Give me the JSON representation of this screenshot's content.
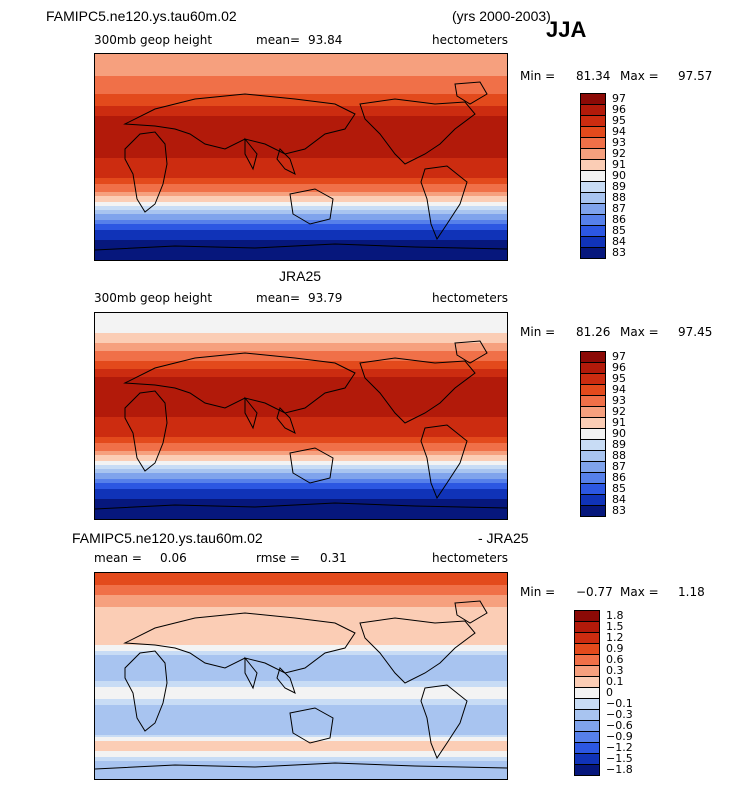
{
  "header": {
    "case_name": "FAMIPC5.ne120.ys.tau60m.02",
    "years": "(yrs 2000-2003)",
    "season": "JJA"
  },
  "panels": [
    {
      "title": "",
      "field_label": "300mb geop height",
      "mean_label": "mean=",
      "mean_value": "93.84",
      "units": "hectometers",
      "min_label": "Min =",
      "min_value": "81.34",
      "max_label": "Max =",
      "max_value": "97.57"
    },
    {
      "title": "JRA25",
      "field_label": "300mb geop height",
      "mean_label": "mean=",
      "mean_value": "93.79",
      "units": "hectometers",
      "min_label": "Min =",
      "min_value": "81.26",
      "max_label": "Max =",
      "max_value": "97.45"
    },
    {
      "title_left": "FAMIPC5.ne120.ys.tau60m.02",
      "title_right": "- JRA25",
      "mean_label": "mean =",
      "mean_value": "0.06",
      "rmse_label": "rmse =",
      "rmse_value": "0.31",
      "units": "hectometers",
      "min_label": "Min =",
      "min_value": "−0.77",
      "max_label": "Max =",
      "max_value": "1.18"
    }
  ],
  "chart_data": [
    {
      "type": "heatmap",
      "title": "300mb geop height",
      "units": "hectometers",
      "colorbar_levels": [
        "97",
        "96",
        "95",
        "94",
        "93",
        "92",
        "91",
        "90",
        "89",
        "88",
        "87",
        "86",
        "85",
        "84",
        "83"
      ],
      "colorbar_colors": [
        "#8b0a06",
        "#b21a0a",
        "#cc2c10",
        "#e34a1c",
        "#f07048",
        "#f6a07e",
        "#fbcdb5",
        "#f3f3f3",
        "#c8dcf5",
        "#a8c4f0",
        "#7fa3ec",
        "#5680ea",
        "#2c57e2",
        "#1033b8",
        "#06177c"
      ],
      "zonal_profile": [
        {
          "lat": 80,
          "value": 92.5
        },
        {
          "lat": 60,
          "value": 93.5
        },
        {
          "lat": 45,
          "value": 95.0
        },
        {
          "lat": 30,
          "value": 96.5
        },
        {
          "lat": 15,
          "value": 96.5
        },
        {
          "lat": 0,
          "value": 96.0
        },
        {
          "lat": -15,
          "value": 95.5
        },
        {
          "lat": -30,
          "value": 93.0
        },
        {
          "lat": -45,
          "value": 89.5
        },
        {
          "lat": -60,
          "value": 85.5
        },
        {
          "lat": -80,
          "value": 83.0
        }
      ]
    },
    {
      "type": "heatmap",
      "title": "300mb geop height",
      "units": "hectometers",
      "colorbar_levels": [
        "97",
        "96",
        "95",
        "94",
        "93",
        "92",
        "91",
        "90",
        "89",
        "88",
        "87",
        "86",
        "85",
        "84",
        "83"
      ],
      "colorbar_colors": [
        "#8b0a06",
        "#b21a0a",
        "#cc2c10",
        "#e34a1c",
        "#f07048",
        "#f6a07e",
        "#fbcdb5",
        "#f3f3f3",
        "#c8dcf5",
        "#a8c4f0",
        "#7fa3ec",
        "#5680ea",
        "#2c57e2",
        "#1033b8",
        "#06177c"
      ],
      "zonal_profile": [
        {
          "lat": 80,
          "value": 90.0
        },
        {
          "lat": 60,
          "value": 92.5
        },
        {
          "lat": 45,
          "value": 94.5
        },
        {
          "lat": 30,
          "value": 96.5
        },
        {
          "lat": 15,
          "value": 96.5
        },
        {
          "lat": 0,
          "value": 96.0
        },
        {
          "lat": -15,
          "value": 95.5
        },
        {
          "lat": -30,
          "value": 93.0
        },
        {
          "lat": -45,
          "value": 89.5
        },
        {
          "lat": -60,
          "value": 85.5
        },
        {
          "lat": -80,
          "value": 83.0
        }
      ]
    },
    {
      "type": "heatmap",
      "title": "",
      "units": "hectometers",
      "colorbar_levels": [
        "1.8",
        "1.5",
        "1.2",
        "0.9",
        "0.6",
        "0.3",
        "0.1",
        "0",
        "−0.1",
        "−0.3",
        "−0.6",
        "−0.9",
        "−1.2",
        "−1.5",
        "−1.8"
      ],
      "colorbar_colors": [
        "#8b0a06",
        "#b21a0a",
        "#cc2c10",
        "#e34a1c",
        "#f07048",
        "#f6a07e",
        "#fbcdb5",
        "#f3f3f3",
        "#c8dcf5",
        "#a8c4f0",
        "#7fa3ec",
        "#5680ea",
        "#2c57e2",
        "#1033b8",
        "#06177c"
      ],
      "zonal_profile": [
        {
          "lat": 80,
          "value": 0.9
        },
        {
          "lat": 60,
          "value": 0.3
        },
        {
          "lat": 45,
          "value": 0.1
        },
        {
          "lat": 30,
          "value": 0.2
        },
        {
          "lat": 15,
          "value": -0.2
        },
        {
          "lat": 0,
          "value": -0.2
        },
        {
          "lat": -15,
          "value": 0.1
        },
        {
          "lat": -30,
          "value": -0.2
        },
        {
          "lat": -45,
          "value": -0.3
        },
        {
          "lat": -60,
          "value": 0.2
        },
        {
          "lat": -80,
          "value": -0.2
        }
      ]
    }
  ]
}
